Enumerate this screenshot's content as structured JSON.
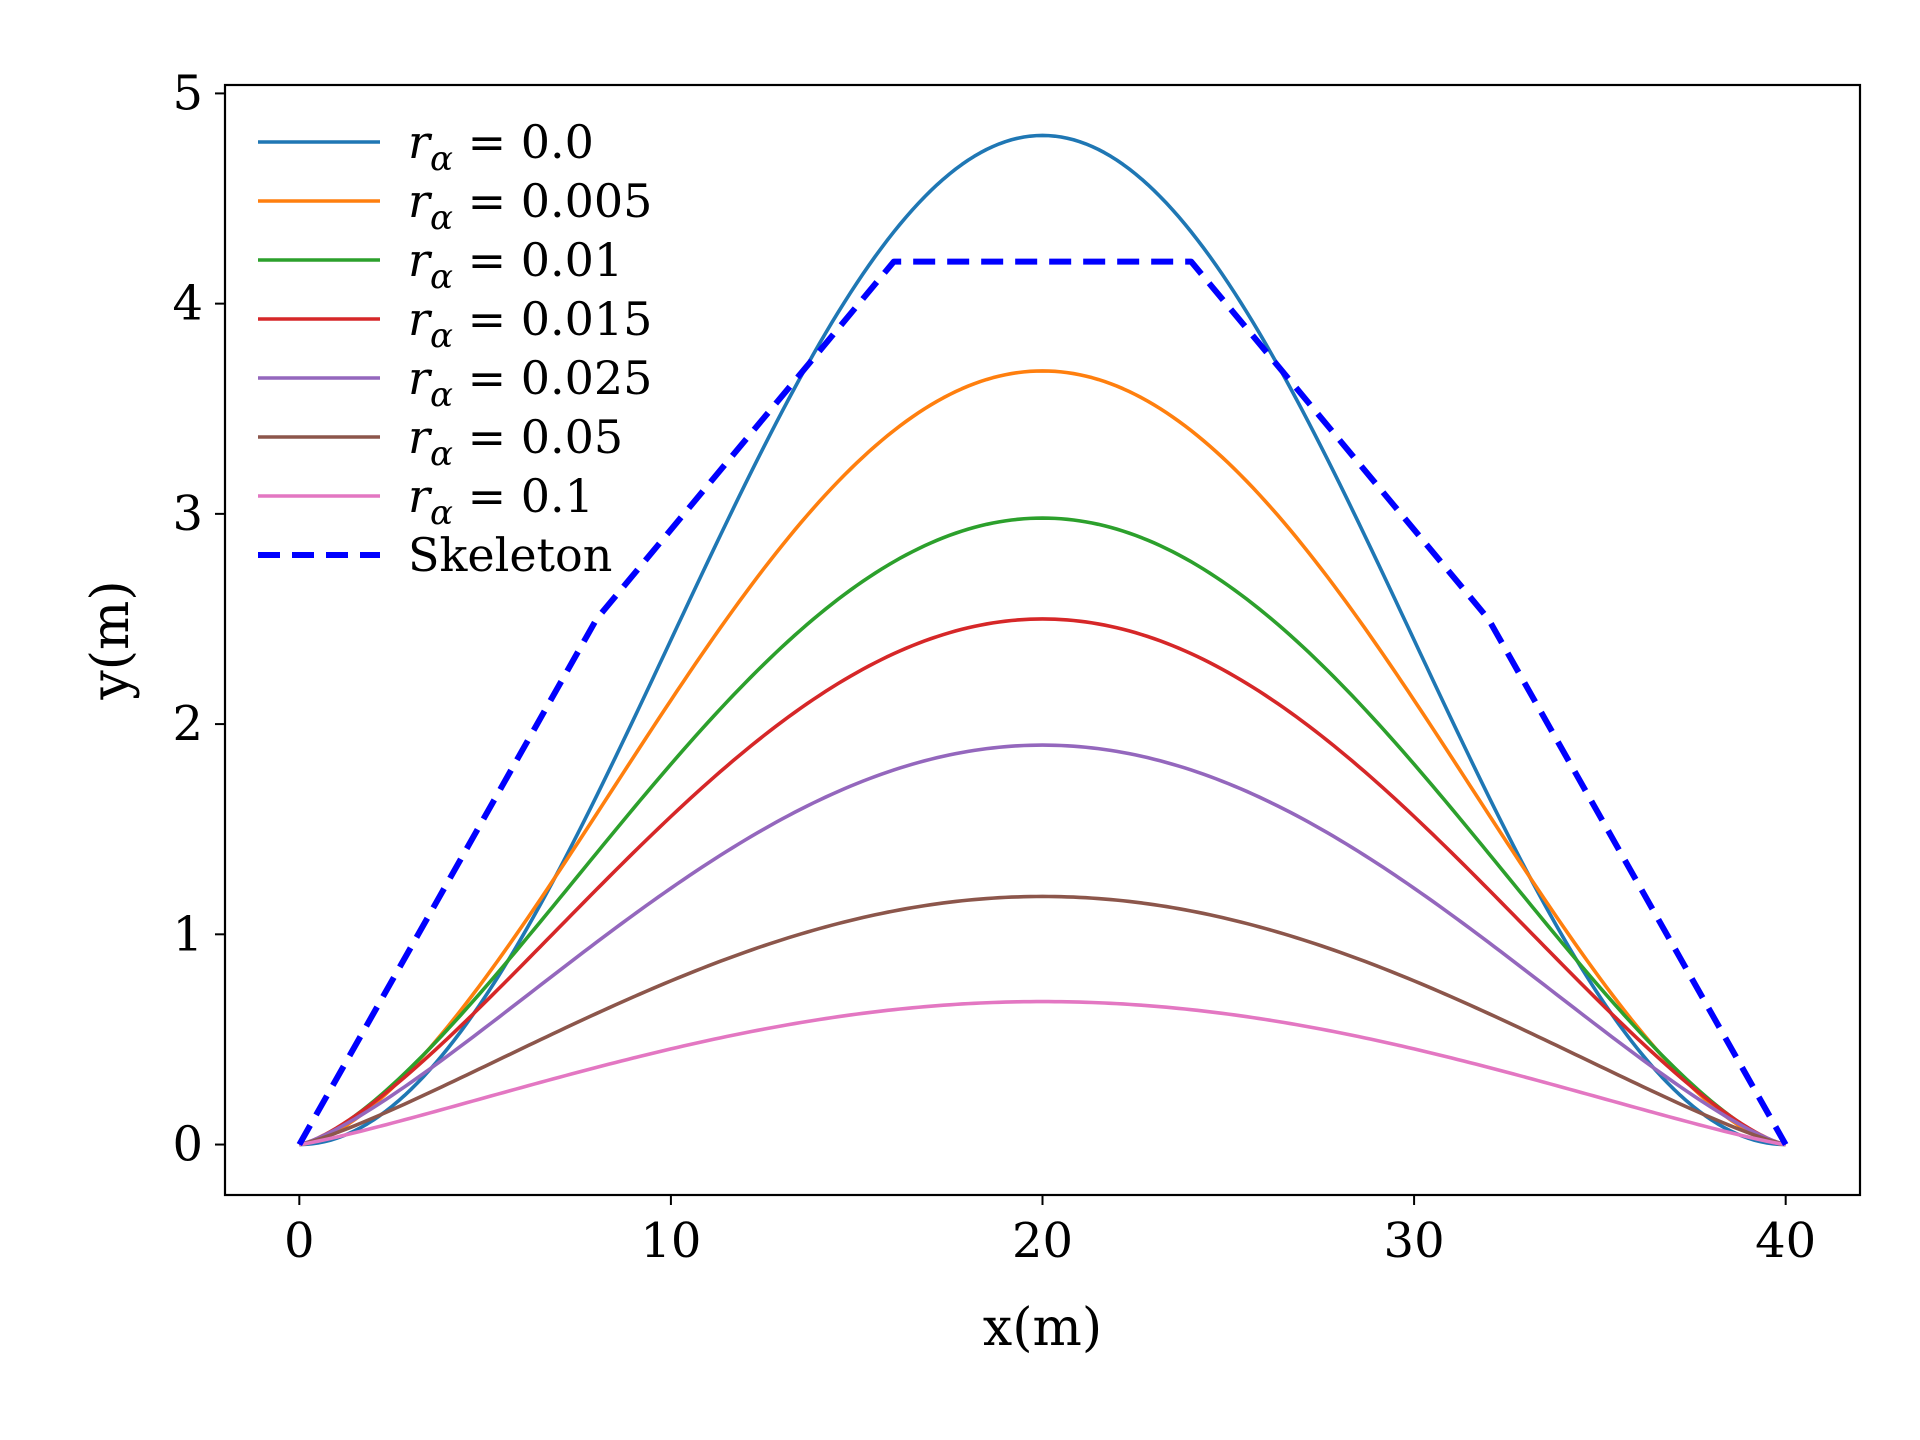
{
  "chart_data": {
    "type": "line",
    "title": "",
    "xlabel": "x(m)",
    "ylabel": "y(m)",
    "xlim": [
      -2,
      42
    ],
    "ylim": [
      -0.24,
      5.04
    ],
    "grid": false,
    "legend_position": "top-left",
    "x_ticks": [
      0,
      10,
      20,
      30,
      40
    ],
    "x_tick_labels": [
      "0",
      "10",
      "20",
      "30",
      "40"
    ],
    "y_ticks": [
      0,
      1,
      2,
      3,
      4,
      5
    ],
    "y_tick_labels": [
      "0",
      "1",
      "2",
      "3",
      "4",
      "5"
    ],
    "curve_span": [
      0,
      40
    ],
    "series": [
      {
        "name": "r_α = 0.0",
        "label_symbol": "r",
        "label_subscript": "α",
        "label_value": " = 0.0",
        "color": "#1f77b4",
        "style": "solid",
        "peak": 4.8,
        "shape_exponent": 1.0
      },
      {
        "name": "r_α = 0.005",
        "label_symbol": "r",
        "label_subscript": "α",
        "label_value": " = 0.005",
        "color": "#ff7f0e",
        "style": "solid",
        "peak": 3.68,
        "shape_exponent": 0.8
      },
      {
        "name": "r_α = 0.01",
        "label_symbol": "r",
        "label_subscript": "α",
        "label_value": " = 0.01",
        "color": "#2ca02c",
        "style": "solid",
        "peak": 2.98,
        "shape_exponent": 0.72
      },
      {
        "name": "r_α = 0.015",
        "label_symbol": "r",
        "label_subscript": "α",
        "label_value": " = 0.015",
        "color": "#d62728",
        "style": "solid",
        "peak": 2.5,
        "shape_exponent": 0.68
      },
      {
        "name": "r_α = 0.025",
        "label_symbol": "r",
        "label_subscript": "α",
        "label_value": " = 0.025",
        "color": "#9467bd",
        "style": "solid",
        "peak": 1.9,
        "shape_exponent": 0.64
      },
      {
        "name": "r_α = 0.05",
        "label_symbol": "r",
        "label_subscript": "α",
        "label_value": " = 0.05",
        "color": "#8c564b",
        "style": "solid",
        "peak": 1.18,
        "shape_exponent": 0.6
      },
      {
        "name": "r_α = 0.1",
        "label_symbol": "r",
        "label_subscript": "α",
        "label_value": " = 0.1",
        "color": "#e377c2",
        "style": "solid",
        "peak": 0.68,
        "shape_exponent": 0.58
      },
      {
        "name": "Skeleton",
        "label_plain": "Skeleton",
        "color": "#0000ff",
        "style": "dashed",
        "x": [
          0,
          8,
          16,
          24,
          32,
          40
        ],
        "y": [
          0,
          2.5,
          4.2,
          4.2,
          2.5,
          0
        ]
      }
    ]
  }
}
